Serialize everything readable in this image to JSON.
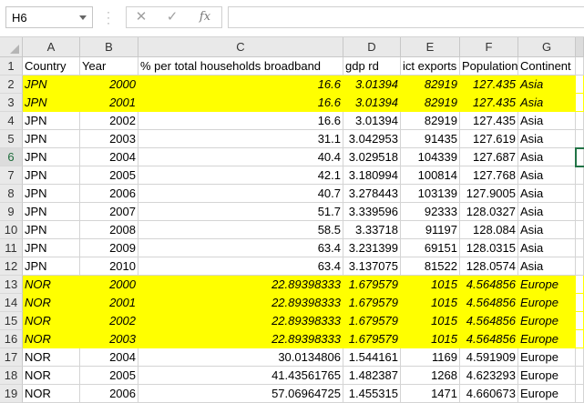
{
  "formula_bar": {
    "name_box": "H6",
    "formula": ""
  },
  "columns": [
    "A",
    "B",
    "C",
    "D",
    "E",
    "F",
    "G"
  ],
  "rows": [
    {
      "n": "1",
      "hl": false,
      "cells": [
        "Country",
        "Year",
        "% per total households broadband",
        "gdp rd",
        "ict exports",
        "Population",
        "Continent"
      ]
    },
    {
      "n": "2",
      "hl": true,
      "cells": [
        "JPN",
        "2000",
        "16.6",
        "3.01394",
        "82919",
        "127.435",
        "Asia"
      ]
    },
    {
      "n": "3",
      "hl": true,
      "cells": [
        "JPN",
        "2001",
        "16.6",
        "3.01394",
        "82919",
        "127.435",
        "Asia"
      ]
    },
    {
      "n": "4",
      "hl": false,
      "cells": [
        "JPN",
        "2002",
        "16.6",
        "3.01394",
        "82919",
        "127.435",
        "Asia"
      ]
    },
    {
      "n": "5",
      "hl": false,
      "cells": [
        "JPN",
        "2003",
        "31.1",
        "3.042953",
        "91435",
        "127.619",
        "Asia"
      ]
    },
    {
      "n": "6",
      "hl": false,
      "cells": [
        "JPN",
        "2004",
        "40.4",
        "3.029518",
        "104339",
        "127.687",
        "Asia"
      ]
    },
    {
      "n": "7",
      "hl": false,
      "cells": [
        "JPN",
        "2005",
        "42.1",
        "3.180994",
        "100814",
        "127.768",
        "Asia"
      ]
    },
    {
      "n": "8",
      "hl": false,
      "cells": [
        "JPN",
        "2006",
        "40.7",
        "3.278443",
        "103139",
        "127.9005",
        "Asia"
      ]
    },
    {
      "n": "9",
      "hl": false,
      "cells": [
        "JPN",
        "2007",
        "51.7",
        "3.339596",
        "92333",
        "128.0327",
        "Asia"
      ]
    },
    {
      "n": "10",
      "hl": false,
      "cells": [
        "JPN",
        "2008",
        "58.5",
        "3.33718",
        "91197",
        "128.084",
        "Asia"
      ]
    },
    {
      "n": "11",
      "hl": false,
      "cells": [
        "JPN",
        "2009",
        "63.4",
        "3.231399",
        "69151",
        "128.0315",
        "Asia"
      ]
    },
    {
      "n": "12",
      "hl": false,
      "cells": [
        "JPN",
        "2010",
        "63.4",
        "3.137075",
        "81522",
        "128.0574",
        "Asia"
      ]
    },
    {
      "n": "13",
      "hl": true,
      "cells": [
        "NOR",
        "2000",
        "22.89398333",
        "1.679579",
        "1015",
        "4.564856",
        "Europe"
      ]
    },
    {
      "n": "14",
      "hl": true,
      "cells": [
        "NOR",
        "2001",
        "22.89398333",
        "1.679579",
        "1015",
        "4.564856",
        "Europe"
      ]
    },
    {
      "n": "15",
      "hl": true,
      "cells": [
        "NOR",
        "2002",
        "22.89398333",
        "1.679579",
        "1015",
        "4.564856",
        "Europe"
      ]
    },
    {
      "n": "16",
      "hl": true,
      "cells": [
        "NOR",
        "2003",
        "22.89398333",
        "1.679579",
        "1015",
        "4.564856",
        "Europe"
      ]
    },
    {
      "n": "17",
      "hl": false,
      "cells": [
        "NOR",
        "2004",
        "30.0134806",
        "1.544161",
        "1169",
        "4.591909",
        "Europe"
      ]
    },
    {
      "n": "18",
      "hl": false,
      "cells": [
        "NOR",
        "2005",
        "41.43561765",
        "1.482387",
        "1268",
        "4.623293",
        "Europe"
      ]
    },
    {
      "n": "19",
      "hl": false,
      "cells": [
        "NOR",
        "2006",
        "57.06964725",
        "1.455315",
        "1471",
        "4.660673",
        "Europe"
      ]
    }
  ]
}
